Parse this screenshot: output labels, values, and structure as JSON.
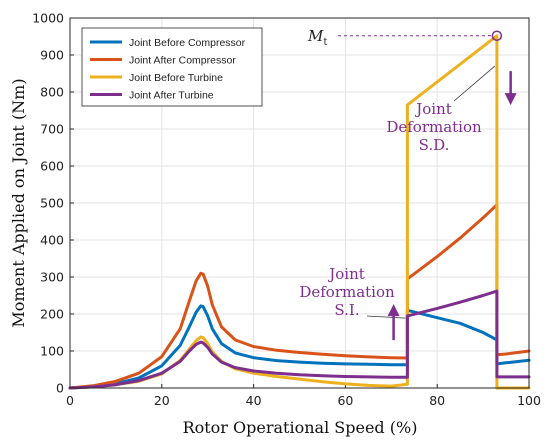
{
  "chart_data": {
    "type": "line",
    "xlabel": "Rotor Operational Speed (%)",
    "ylabel": "Moment Applied on Joint (Nm)",
    "xlim": [
      0,
      100
    ],
    "ylim": [
      0,
      1000
    ],
    "xticks": [
      "0",
      "20",
      "40",
      "60",
      "80",
      "100"
    ],
    "yticks": [
      "0",
      "100",
      "200",
      "300",
      "400",
      "500",
      "600",
      "700",
      "800",
      "900",
      "1000"
    ],
    "grid": true,
    "legend_position": "top-left",
    "series": [
      {
        "name": "Joint Before Compressor",
        "color": "#0072BD",
        "x": [
          0,
          5,
          10,
          15,
          20,
          24,
          26,
          27.5,
          28.5,
          29,
          30,
          31,
          33,
          36,
          40,
          45,
          50,
          55,
          60,
          65,
          70,
          73.5,
          73.5,
          80,
          85,
          90,
          93,
          93,
          95,
          100
        ],
        "y": [
          0,
          4,
          12,
          27,
          60,
          115,
          165,
          205,
          222,
          220,
          195,
          160,
          120,
          95,
          82,
          74,
          70,
          67,
          65,
          64,
          63,
          63,
          210,
          190,
          175,
          150,
          130,
          65,
          68,
          75
        ]
      },
      {
        "name": "Joint After Compressor",
        "color": "#D95319",
        "x": [
          0,
          5,
          10,
          15,
          20,
          24,
          26,
          27.5,
          28.5,
          29,
          30,
          31,
          33,
          36,
          40,
          45,
          50,
          55,
          60,
          65,
          70,
          73.5,
          73.5,
          80,
          85,
          90,
          93,
          93,
          95,
          100
        ],
        "y": [
          0,
          6,
          18,
          40,
          85,
          160,
          235,
          290,
          310,
          308,
          275,
          225,
          165,
          130,
          112,
          102,
          96,
          91,
          87,
          84,
          82,
          81,
          295,
          355,
          405,
          460,
          495,
          90,
          92,
          100
        ]
      },
      {
        "name": "Joint Before Turbine",
        "color": "#EDB120",
        "x": [
          0,
          5,
          10,
          15,
          20,
          24,
          26,
          27.5,
          28.5,
          29,
          30,
          31,
          33,
          36,
          40,
          45,
          50,
          55,
          60,
          65,
          70,
          73.5,
          73.5,
          93,
          93,
          100
        ],
        "y": [
          0,
          3,
          9,
          18,
          38,
          75,
          105,
          128,
          138,
          136,
          120,
          98,
          72,
          52,
          40,
          31,
          24,
          17,
          11,
          7,
          5,
          10,
          765,
          952,
          0,
          0
        ]
      },
      {
        "name": "Joint After Turbine",
        "color": "#7E2F8E",
        "x": [
          0,
          5,
          10,
          15,
          20,
          24,
          26,
          27.5,
          28.5,
          29,
          30,
          31,
          33,
          36,
          40,
          45,
          50,
          55,
          60,
          65,
          70,
          73.5,
          73.5,
          80,
          85,
          90,
          93,
          93,
          95,
          100
        ],
        "y": [
          0,
          3,
          9,
          20,
          40,
          72,
          100,
          118,
          124,
          122,
          110,
          92,
          70,
          55,
          46,
          40,
          36,
          33,
          31,
          30,
          29,
          29,
          195,
          215,
          232,
          250,
          262,
          30,
          30,
          30
        ]
      }
    ],
    "annotations": {
      "mt_label": "M",
      "mt_subscript": "t",
      "mt_point": {
        "x": 93,
        "y": 952
      },
      "deformation_sd": [
        "Joint",
        "Deformation",
        "S.D."
      ],
      "deformation_si": [
        "Joint",
        "Deformation",
        "S.I."
      ],
      "sd_anchor": {
        "x": 93,
        "y": 870
      },
      "si_anchor": {
        "x": 73.3,
        "y": 205
      },
      "arrow_down_at": {
        "x": 96,
        "y": 770
      },
      "arrow_up_at": {
        "x": 70.5,
        "y": 205
      },
      "annotation_color": "#7E2F8E"
    }
  }
}
